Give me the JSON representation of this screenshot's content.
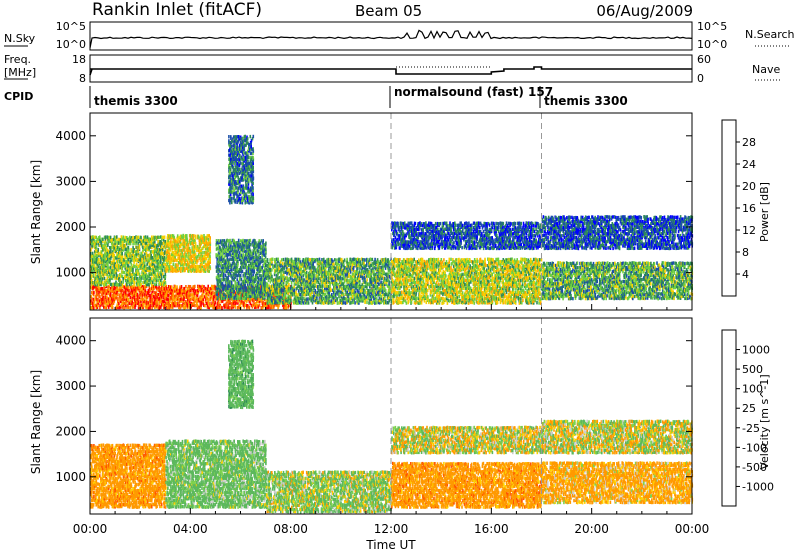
{
  "header": {
    "station": "Rankin Inlet (fitACF)",
    "beam": "Beam 05",
    "date": "06/Aug/2009"
  },
  "noise_panel": {
    "left_label": "N.Sky",
    "right_label": "N.Search",
    "ticks_left": [
      "10^5",
      "10^0"
    ],
    "ticks_right": [
      "10^5",
      "10^0"
    ]
  },
  "freq_panel": {
    "left_label_line1": "Freq.",
    "left_label_line2": "[MHz]",
    "right_label": "Nave",
    "ticks_left": [
      "18",
      "8"
    ],
    "ticks_right": [
      "60",
      "0"
    ]
  },
  "cpid": {
    "label": "CPID",
    "modes": [
      {
        "name": "themis 3300",
        "start_hour": 0
      },
      {
        "name": "normalsound (fast) 157",
        "start_hour": 12
      },
      {
        "name": "themis 3300",
        "start_hour": 18
      }
    ]
  },
  "x_axis": {
    "label": "Time UT",
    "ticks": [
      "00:00",
      "04:00",
      "08:00",
      "12:00",
      "16:00",
      "20:00",
      "00:00"
    ],
    "range_hours": [
      0,
      24
    ]
  },
  "chart_data": [
    {
      "type": "heatmap",
      "ylabel": "Slant Range [km]",
      "yticks": [
        "1000",
        "2000",
        "3000",
        "4000"
      ],
      "ylim": [
        180,
        4500
      ],
      "colorbar": {
        "label": "Power [dB]",
        "ticks": [
          "4",
          "8",
          "12",
          "16",
          "20",
          "24",
          "28"
        ],
        "colors": [
          "#0000ff",
          "#1a4fa8",
          "#2e8b57",
          "#6fcf3f",
          "#f5d000",
          "#ffa500",
          "#ff6600",
          "#ff0000"
        ]
      },
      "regions": [
        {
          "t": [
            0.0,
            8.0
          ],
          "range_km": [
            200,
            700
          ],
          "value": 26
        },
        {
          "t": [
            0.0,
            3.0
          ],
          "range_km": [
            700,
            1800
          ],
          "value": 14
        },
        {
          "t": [
            3.0,
            4.8
          ],
          "range_km": [
            1000,
            1800
          ],
          "value": 18
        },
        {
          "t": [
            5.0,
            7.0
          ],
          "range_km": [
            400,
            1700
          ],
          "value": 10
        },
        {
          "t": [
            7.0,
            12.0
          ],
          "range_km": [
            300,
            1300
          ],
          "value": 12
        },
        {
          "t": [
            12.0,
            18.0
          ],
          "range_km": [
            300,
            1300
          ],
          "value": 16
        },
        {
          "t": [
            12.0,
            18.0
          ],
          "range_km": [
            1500,
            2100
          ],
          "value": 6
        },
        {
          "t": [
            18.0,
            24.0
          ],
          "range_km": [
            400,
            1200
          ],
          "value": 12
        },
        {
          "t": [
            18.0,
            24.0
          ],
          "range_km": [
            1500,
            2200
          ],
          "value": 6
        },
        {
          "t": [
            5.5,
            6.5
          ],
          "range_km": [
            2500,
            4000
          ],
          "value": 8
        }
      ]
    },
    {
      "type": "heatmap",
      "ylabel": "Slant Range [km]",
      "yticks": [
        "1000",
        "2000",
        "3000",
        "4000"
      ],
      "ylim": [
        180,
        4500
      ],
      "colorbar": {
        "label": "Velocity [m s^-1]",
        "ticks": [
          "1000",
          "500",
          "100",
          "25",
          "-25",
          "-100",
          "-500",
          "-1000"
        ],
        "colors": [
          "#2040c0",
          "#2e8b57",
          "#5cb85c",
          "#7fd34e",
          "#cccccc",
          "#ffd000",
          "#ff9900",
          "#ff5500",
          "#ff0000"
        ]
      },
      "regions": [
        {
          "t": [
            0.0,
            3.0
          ],
          "range_km": [
            300,
            1700
          ],
          "value": -300
        },
        {
          "t": [
            3.0,
            7.0
          ],
          "range_km": [
            300,
            1800
          ],
          "value": 200
        },
        {
          "t": [
            7.0,
            12.0
          ],
          "range_km": [
            200,
            1100
          ],
          "value": 100
        },
        {
          "t": [
            12.0,
            18.0
          ],
          "range_km": [
            300,
            1300
          ],
          "value": -300
        },
        {
          "t": [
            12.0,
            18.0
          ],
          "range_km": [
            1500,
            2100
          ],
          "value": 0
        },
        {
          "t": [
            18.0,
            24.0
          ],
          "range_km": [
            400,
            1300
          ],
          "value": -200
        },
        {
          "t": [
            18.0,
            24.0
          ],
          "range_km": [
            1500,
            2200
          ],
          "value": 0
        },
        {
          "t": [
            5.5,
            6.5
          ],
          "range_km": [
            2500,
            4000
          ],
          "value": 300
        }
      ]
    }
  ]
}
